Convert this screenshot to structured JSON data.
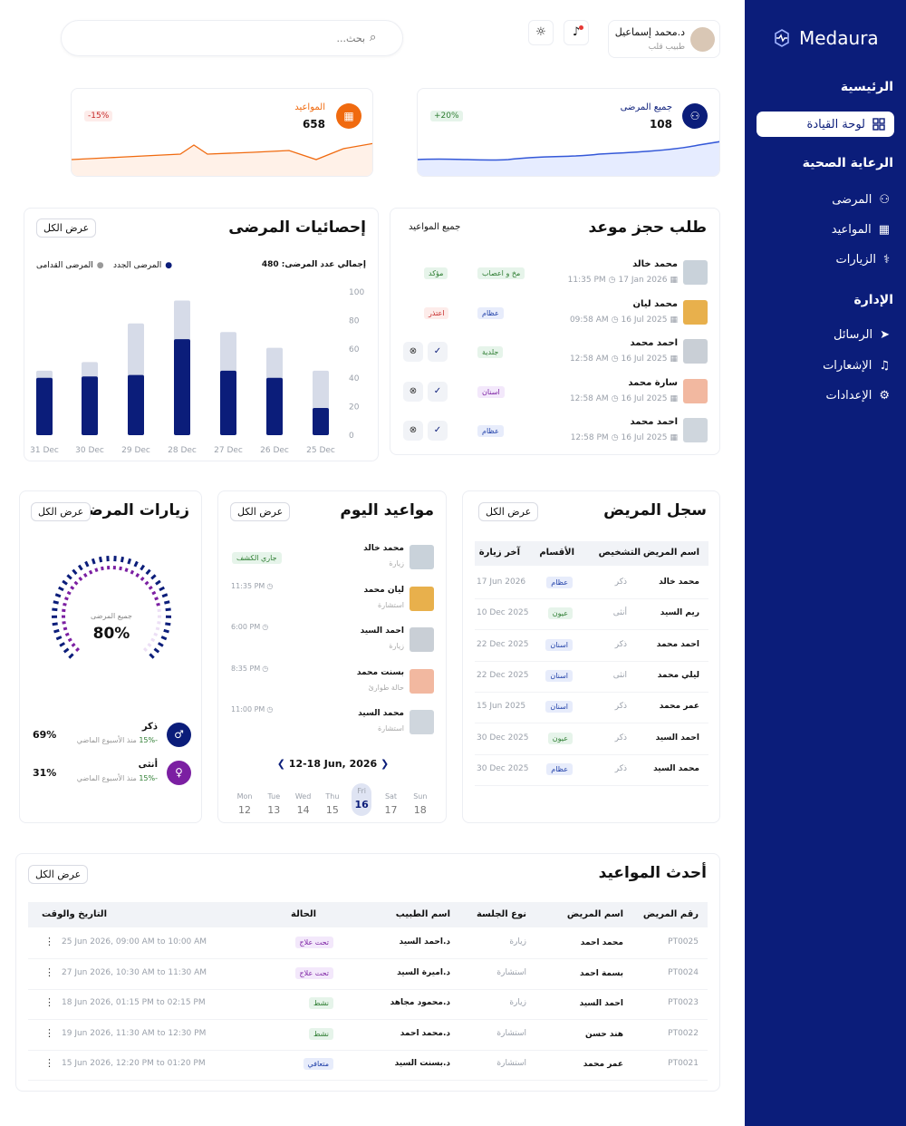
{
  "brand": {
    "name": "Medaura"
  },
  "sidebar": {
    "sections": [
      {
        "title": "الرئيسية",
        "items": [
          {
            "label": "لوحة القيادة",
            "icon": "dashboard-icon",
            "active": true
          }
        ]
      },
      {
        "title": "الرعاية الصحية",
        "items": [
          {
            "label": "المرضى",
            "icon": "patients-icon"
          },
          {
            "label": "المواعيد",
            "icon": "calendar-icon"
          },
          {
            "label": "الزيارات",
            "icon": "visits-icon"
          }
        ]
      },
      {
        "title": "الإدارة",
        "items": [
          {
            "label": "الرسائل",
            "icon": "send-icon"
          },
          {
            "label": "الإشعارات",
            "icon": "bell-icon"
          },
          {
            "label": "الإعدادات",
            "icon": "gear-icon"
          }
        ]
      }
    ]
  },
  "header": {
    "user_name": "د.محمد إسماعيل",
    "user_role": "طبيب قلب",
    "search_placeholder": "بحث..."
  },
  "stats": {
    "patients": {
      "label": "جميع المرضى",
      "value": "108",
      "change": "+20%"
    },
    "appointments": {
      "label": "المواعيد",
      "value": "658",
      "change": "-15%"
    }
  },
  "patient_stats": {
    "title": "إحصائيات المرضى",
    "view_all": "عرض الكل",
    "total_label": "إجمالي عدد المرضى: 480",
    "legend_new": "المرضى الجدد",
    "legend_old": "المرضى القدامى",
    "chart_data": {
      "type": "bar",
      "categories": [
        "31 Dec",
        "30 Dec",
        "29 Dec",
        "28 Dec",
        "27 Dec",
        "26 Dec",
        "25 Dec"
      ],
      "series": [
        {
          "name": "المرضى الجدد",
          "values": [
            40,
            41,
            42,
            67,
            45,
            40,
            19
          ]
        },
        {
          "name": "المرضى القدامى",
          "values": [
            45,
            51,
            78,
            94,
            72,
            61,
            45
          ]
        }
      ],
      "ylim": [
        0,
        100
      ],
      "yticks": [
        "100",
        "80",
        "60",
        "40",
        "20",
        "0"
      ]
    }
  },
  "booking": {
    "title": "طلب حجز موعد",
    "view_all": "جميع المواعيد",
    "rows": [
      {
        "name": "محمد خالد",
        "time": "11:35 PM",
        "date": "17 Jan 2026",
        "dept": "مخ و اعصاب",
        "status": "مؤكد",
        "actions": false
      },
      {
        "name": "محمد ليان",
        "time": "09:58 AM",
        "date": "16 Jul 2025",
        "dept": "عظام",
        "status": "اعتذر",
        "actions": false
      },
      {
        "name": "احمد محمد",
        "time": "12:58 AM",
        "date": "16 Jul 2025",
        "dept": "جلدية",
        "status": "",
        "actions": true
      },
      {
        "name": "سارة محمد",
        "time": "12:58 AM",
        "date": "16 Jul 2025",
        "dept": "اسنان",
        "status": "",
        "actions": true
      },
      {
        "name": "احمد محمد",
        "time": "12:58 PM",
        "date": "16 Jul 2025",
        "dept": "عظام",
        "status": "",
        "actions": true
      }
    ]
  },
  "visits": {
    "title": "زيارات المرضى",
    "view_all": "عرض الكل",
    "gauge_label": "جميع المرضى",
    "gauge_value": "80%",
    "gauge_fraction": 0.8,
    "male": {
      "label": "ذكر",
      "pct": "69%",
      "change": "-15%",
      "note": "منذ الأسبوع الماضي"
    },
    "female": {
      "label": "أنثى",
      "pct": "31%",
      "change": "-15%",
      "note": "منذ الأسبوع الماضي"
    }
  },
  "today": {
    "title": "مواعيد اليوم",
    "view_all": "عرض الكل",
    "rows": [
      {
        "name": "محمد خالد",
        "type": "زيارة",
        "time": "",
        "status": "جاري الكشف"
      },
      {
        "name": "ليان محمد",
        "type": "استشارة",
        "time": "11:35 PM"
      },
      {
        "name": "احمد السيد",
        "type": "زيارة",
        "time": "6:00 PM"
      },
      {
        "name": "بسنت محمد",
        "type": "حالة طوارئ",
        "time": "8:35 PM"
      },
      {
        "name": "محمد السيد",
        "type": "استشارة",
        "time": "11:00 PM"
      }
    ],
    "range": "12-18 Jun, 2026",
    "days": [
      {
        "d": "Mon",
        "n": "12"
      },
      {
        "d": "Tue",
        "n": "13"
      },
      {
        "d": "Wed",
        "n": "14"
      },
      {
        "d": "Thu",
        "n": "15"
      },
      {
        "d": "Fri",
        "n": "16"
      },
      {
        "d": "Sat",
        "n": "17"
      },
      {
        "d": "Sun",
        "n": "18"
      }
    ]
  },
  "records": {
    "title": "سجل المريض",
    "view_all": "عرض الكل",
    "headers": [
      "اسم المريض",
      "التشخيص",
      "الأقسام",
      "آخر زيارة"
    ],
    "rows": [
      [
        "محمد خالد",
        "ذكر",
        "عظام",
        "17 Jun 2026"
      ],
      [
        "ريم السيد",
        "أنثى",
        "عيون",
        "10 Dec 2025"
      ],
      [
        "احمد محمد",
        "ذكر",
        "اسنان",
        "22 Dec 2025"
      ],
      [
        "ليلي محمد",
        "انثى",
        "اسنان",
        "22 Dec 2025"
      ],
      [
        "عمر محمد",
        "ذكر",
        "اسنان",
        "15 Jun 2025"
      ],
      [
        "احمد  السيد",
        "ذكر",
        "عيون",
        "30 Dec 2025"
      ],
      [
        "محمد السيد",
        "ذكر",
        "عظام",
        "30 Dec 2025"
      ]
    ]
  },
  "latest": {
    "title": "أحدث المواعيد",
    "view_all": "عرض الكل",
    "headers": [
      "رقم المريض",
      "اسم المريض",
      "نوع الجلسة",
      "اسم الطبيب",
      "الحالة",
      "التاريخ والوقت"
    ],
    "rows": [
      [
        "PT0025",
        "محمد احمد",
        "زيارة",
        "د.احمد السيد",
        "تحت علاج",
        "25 Jun 2026, 09:00 AM to 10:00 AM"
      ],
      [
        "PT0024",
        "بسمة احمد",
        "استشارة",
        "د.اميرة السيد",
        "تحت علاج",
        "27 Jun 2026, 10:30 AM to 11:30 AM"
      ],
      [
        "PT0023",
        "احمد السيد",
        "زيارة",
        "د.محمود مجاهد",
        "نشط",
        "18 Jun 2026, 01:15 PM to 02:15 PM"
      ],
      [
        "PT0022",
        "هند حسن",
        "استشارة",
        "د.محمد احمد",
        "نشط",
        "19 Jun 2026, 11:30 AM to 12:30 PM"
      ],
      [
        "PT0021",
        "عمر محمد",
        "استشارة",
        "د.بسنت السيد",
        "متعافي",
        "15 Jun 2026, 12:20 PM to 01:20 PM"
      ]
    ]
  }
}
